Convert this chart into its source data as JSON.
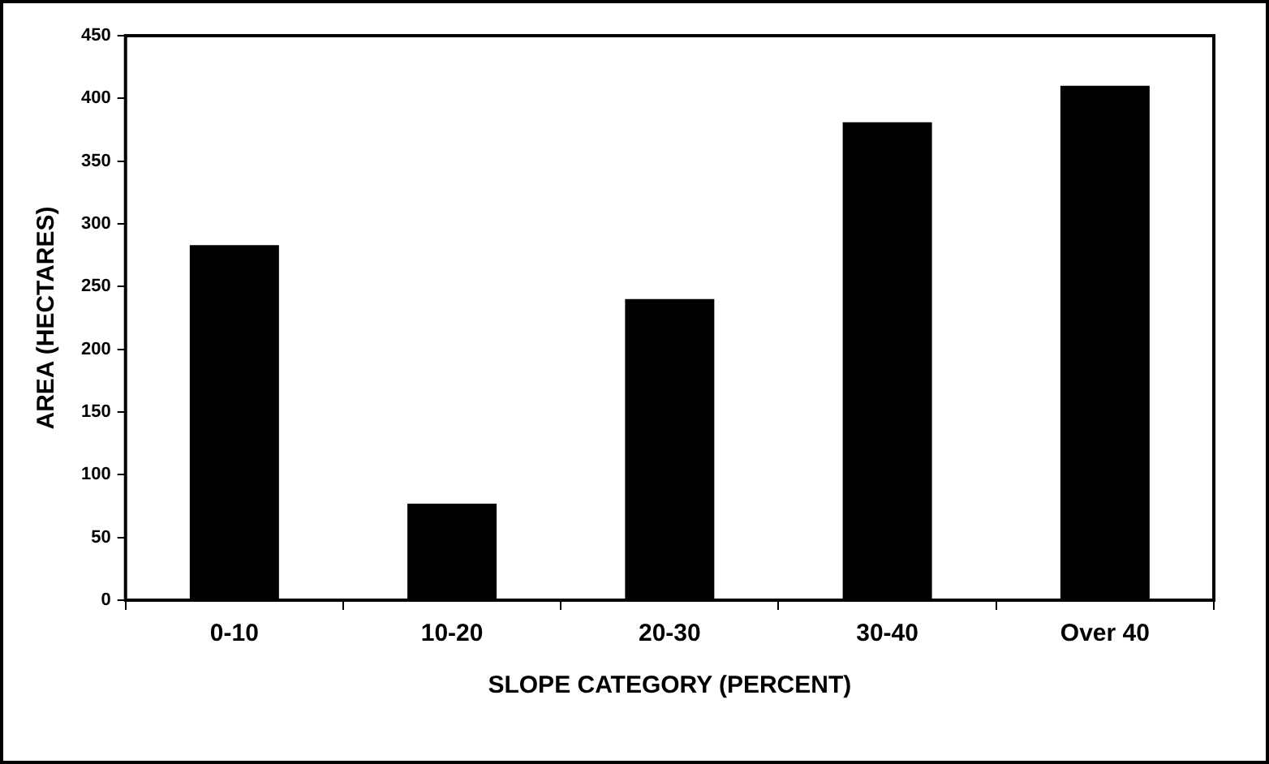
{
  "chart_data": {
    "type": "bar",
    "xlabel": "SLOPE CATEGORY (PERCENT)",
    "ylabel": "AREA (HECTARES)",
    "categories": [
      "0-10",
      "10-20",
      "20-30",
      "30-40",
      "Over 40"
    ],
    "values": [
      283,
      77,
      240,
      381,
      410
    ],
    "color": "#000000",
    "ylim": [
      0,
      450
    ],
    "yticks": [
      0,
      50,
      100,
      150,
      200,
      250,
      300,
      350,
      400,
      450
    ],
    "grid": false,
    "legend": false
  }
}
